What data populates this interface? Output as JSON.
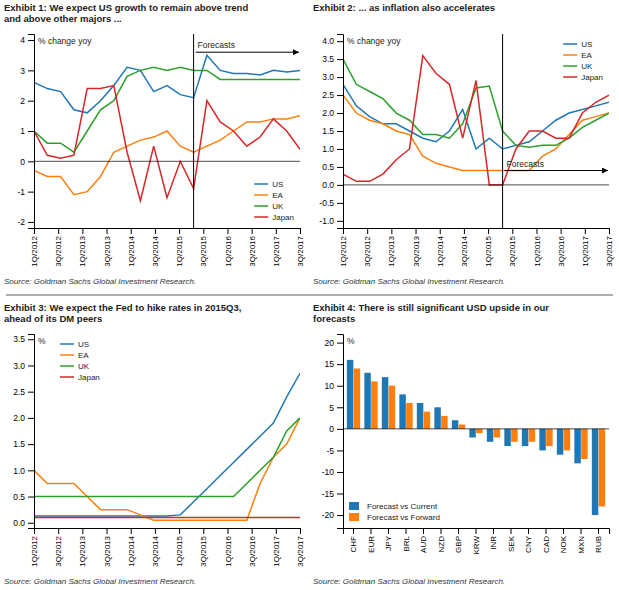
{
  "chart_data": [
    {
      "type": "line",
      "title": "Exhibit 1: We expect US growth to remain above trend\nand above other majors ...",
      "ylabel": "% change yoy",
      "source": "Source: Goldman Sachs Global Investment Research.",
      "xlim": [
        0,
        20
      ],
      "xticks": [
        {
          "value": 0,
          "label": "1Q/2012"
        },
        {
          "value": 1.8181818181818181,
          "label": "3Q/2012"
        },
        {
          "value": 3.6363636363636362,
          "label": "1Q/2013"
        },
        {
          "value": 5.454545454545454,
          "label": "3Q/2013"
        },
        {
          "value": 7.2727272727272725,
          "label": "1Q/2014"
        },
        {
          "value": 9.09090909090909,
          "label": "3Q/2014"
        },
        {
          "value": 10.909090909090908,
          "label": "1Q/2015"
        },
        {
          "value": 12.727272727272727,
          "label": "3Q/2015"
        },
        {
          "value": 14.545454545454545,
          "label": "1Q/2016"
        },
        {
          "value": 16.363636363636363,
          "label": "3Q/2016"
        },
        {
          "value": 18.18181818181818,
          "label": "1Q/2017"
        },
        {
          "value": 20,
          "label": "3Q/2017"
        }
      ],
      "ylim": [
        -2.2,
        4.2
      ],
      "yticks": [
        -2,
        -1,
        0,
        1,
        2,
        3,
        4
      ],
      "series": [
        {
          "name": "US",
          "values": [
            2.6,
            2.4,
            2.3,
            1.7,
            1.6,
            2.0,
            2.5,
            3.1,
            3.0,
            2.3,
            2.5,
            2.2,
            2.1,
            3.5,
            3.0,
            2.9,
            2.9,
            2.85,
            3.0,
            2.95,
            3.0
          ]
        },
        {
          "name": "EA",
          "values": [
            -0.3,
            -0.5,
            -0.5,
            -1.1,
            -1.0,
            -0.5,
            0.3,
            0.5,
            0.7,
            0.8,
            1.0,
            0.5,
            0.3,
            0.5,
            0.7,
            1.0,
            1.3,
            1.3,
            1.4,
            1.4,
            1.5
          ]
        },
        {
          "name": "UK",
          "values": [
            1.0,
            0.6,
            0.6,
            0.3,
            1.0,
            1.7,
            2.0,
            2.8,
            3.0,
            3.1,
            3.0,
            3.1,
            3.0,
            3.0,
            2.7,
            2.7,
            2.7,
            2.7,
            2.7,
            2.7,
            2.7
          ]
        },
        {
          "name": "Japan",
          "values": [
            1.0,
            0.2,
            0.1,
            0.2,
            2.4,
            2.4,
            2.5,
            0.3,
            -1.3,
            0.5,
            -1.2,
            0.0,
            -0.9,
            2.0,
            1.3,
            1.0,
            0.5,
            0.8,
            1.4,
            1.0,
            0.4
          ]
        }
      ],
      "vlines": [
        12
      ],
      "hlines": [
        0
      ],
      "annotations": [
        {
          "text": "Forecasts",
          "x": 12,
          "y": 3.6
        }
      ],
      "legend": "lower right",
      "grid": false
    },
    {
      "type": "line",
      "title": "Exhibit 2: ... as inflation also accelerates",
      "ylabel": "% change yoy",
      "source": "Source: Goldman Sachs Global Investment Research.",
      "xlim": [
        0,
        20
      ],
      "xticks": [
        {
          "value": 0,
          "label": "1Q/2012"
        },
        {
          "value": 1.8181818181818181,
          "label": "3Q/2012"
        },
        {
          "value": 3.6363636363636362,
          "label": "1Q/2013"
        },
        {
          "value": 5.454545454545454,
          "label": "3Q/2013"
        },
        {
          "value": 7.2727272727272725,
          "label": "1Q/2014"
        },
        {
          "value": 9.09090909090909,
          "label": "3Q/2014"
        },
        {
          "value": 10.909090909090908,
          "label": "1Q/2015"
        },
        {
          "value": 12.727272727272727,
          "label": "3Q/2015"
        },
        {
          "value": 14.545454545454545,
          "label": "1Q/2016"
        },
        {
          "value": 16.363636363636363,
          "label": "3Q/2016"
        },
        {
          "value": 18.18181818181818,
          "label": "1Q/2017"
        },
        {
          "value": 20,
          "label": "3Q/2017"
        }
      ],
      "ylim": [
        -1.2,
        4.2
      ],
      "yticks": [
        {
          "value": -1.0,
          "label": "-1.0"
        },
        -0.5,
        {
          "value": 0.0,
          "label": "0.0"
        },
        0.5,
        {
          "value": 1.0,
          "label": "1.0"
        },
        1.5,
        {
          "value": 2.0,
          "label": "2.0"
        },
        2.5,
        {
          "value": 3.0,
          "label": "3.0"
        },
        3.5,
        {
          "value": 4.0,
          "label": "4.0"
        }
      ],
      "series": [
        {
          "name": "US",
          "values": [
            2.8,
            2.2,
            1.9,
            1.7,
            1.7,
            1.5,
            1.3,
            1.2,
            1.5,
            2.1,
            1.0,
            1.3,
            1.0,
            1.1,
            1.2,
            1.5,
            1.8,
            2.0,
            2.1,
            2.2,
            2.3
          ]
        },
        {
          "name": "EA",
          "values": [
            2.5,
            2.0,
            1.8,
            1.7,
            1.5,
            1.4,
            0.8,
            0.6,
            0.5,
            0.4,
            0.4,
            0.4,
            0.4,
            0.4,
            0.4,
            0.8,
            1.0,
            1.4,
            1.8,
            1.9,
            2.0
          ]
        },
        {
          "name": "UK",
          "values": [
            3.5,
            2.8,
            2.6,
            2.4,
            2.0,
            1.8,
            1.4,
            1.4,
            1.3,
            1.7,
            2.7,
            2.75,
            1.5,
            1.1,
            1.05,
            1.1,
            1.1,
            1.3,
            1.6,
            1.8,
            2.0
          ]
        },
        {
          "name": "Japan",
          "values": [
            0.3,
            0.1,
            0.1,
            0.3,
            0.7,
            1.0,
            3.6,
            3.1,
            2.8,
            1.3,
            2.9,
            0.0,
            0.0,
            1.0,
            1.5,
            1.5,
            1.3,
            1.3,
            2.0,
            2.3,
            2.5
          ]
        }
      ],
      "vlines": [
        12
      ],
      "hlines": [
        0
      ],
      "annotations": [
        {
          "text": "Forecasts",
          "x": 12,
          "y": 0.4
        }
      ],
      "legend": "upper right",
      "grid": false
    },
    {
      "type": "line",
      "title": "Exhibit 3: We expect the Fed to hike rates in 2015Q3,\nahead of its DM peers",
      "ylabel": "%",
      "source": "Source: Goldman Sachs Global Investment Research.",
      "xlim": [
        0,
        20
      ],
      "xticks": [
        {
          "value": 0,
          "label": "1Q/2012"
        },
        {
          "value": 1.8181818181818181,
          "label": "3Q/2012"
        },
        {
          "value": 3.6363636363636362,
          "label": "1Q/2013"
        },
        {
          "value": 5.454545454545454,
          "label": "3Q/2013"
        },
        {
          "value": 7.2727272727272725,
          "label": "1Q/2014"
        },
        {
          "value": 9.09090909090909,
          "label": "3Q/2014"
        },
        {
          "value": 10.909090909090908,
          "label": "1Q/2015"
        },
        {
          "value": 12.727272727272727,
          "label": "3Q/2015"
        },
        {
          "value": 14.545454545454545,
          "label": "1Q/2016"
        },
        {
          "value": 16.363636363636363,
          "label": "3Q/2016"
        },
        {
          "value": 18.18181818181818,
          "label": "1Q/2017"
        },
        {
          "value": 20,
          "label": "3Q/2017"
        }
      ],
      "ylim": [
        -0.1,
        3.6
      ],
      "yticks": [
        {
          "value": 0.0,
          "label": "0.0"
        },
        0.5,
        {
          "value": 1.0,
          "label": "1.0"
        },
        1.5,
        {
          "value": 2.0,
          "label": "2.0"
        },
        2.5,
        {
          "value": 3.0,
          "label": "3.0"
        },
        3.5
      ],
      "series": [
        {
          "name": "US",
          "values": [
            0.13,
            0.13,
            0.13,
            0.13,
            0.13,
            0.13,
            0.13,
            0.13,
            0.13,
            0.13,
            0.13,
            0.15,
            0.4,
            0.65,
            0.9,
            1.15,
            1.4,
            1.65,
            1.9,
            2.4,
            2.85
          ]
        },
        {
          "name": "EA",
          "values": [
            1.0,
            0.75,
            0.75,
            0.75,
            0.5,
            0.25,
            0.25,
            0.25,
            0.15,
            0.05,
            0.05,
            0.05,
            0.05,
            0.05,
            0.05,
            0.05,
            0.05,
            0.75,
            1.25,
            1.5,
            2.0
          ]
        },
        {
          "name": "UK",
          "values": [
            0.5,
            0.5,
            0.5,
            0.5,
            0.5,
            0.5,
            0.5,
            0.5,
            0.5,
            0.5,
            0.5,
            0.5,
            0.5,
            0.5,
            0.5,
            0.5,
            0.75,
            1.0,
            1.25,
            1.75,
            2.0
          ]
        },
        {
          "name": "Japan",
          "values": [
            0.1,
            0.1,
            0.1,
            0.1,
            0.1,
            0.1,
            0.1,
            0.1,
            0.1,
            0.1,
            0.1,
            0.1,
            0.1,
            0.1,
            0.1,
            0.1,
            0.1,
            0.1,
            0.1,
            0.1,
            0.1
          ]
        }
      ],
      "legend": "upper left",
      "grid": false
    },
    {
      "type": "bar",
      "title": "Exhibit 4: There is still significant USD upside in our\nforecasts",
      "ylabel": "%",
      "source": "Source: Goldman Sachs Global Investment Research.",
      "categories": [
        "CHF",
        "EUR",
        "JPY",
        "BRL",
        "AUD",
        "NZD",
        "GBP",
        "KRW",
        "INR",
        "SEK",
        "CNY",
        "CAD",
        "NOK",
        "MXN",
        "RUB"
      ],
      "ylim": [
        -23,
        22
      ],
      "yticks": [
        -20,
        -15,
        -10,
        -5,
        0,
        5,
        10,
        15,
        20
      ],
      "series": [
        {
          "name": "Forecast vs Current",
          "values": [
            16,
            13,
            12,
            8,
            6,
            5,
            2,
            -2,
            -3,
            -4,
            -4,
            -5,
            -6,
            -8,
            -20
          ]
        },
        {
          "name": "Forecast vs Forward",
          "values": [
            14,
            11,
            10,
            6,
            4,
            3,
            1,
            -1,
            -2,
            -3,
            -3,
            -4,
            -5,
            -7,
            -18
          ]
        }
      ],
      "hlines": [
        0
      ],
      "legend": "lower left",
      "grid": false
    }
  ]
}
